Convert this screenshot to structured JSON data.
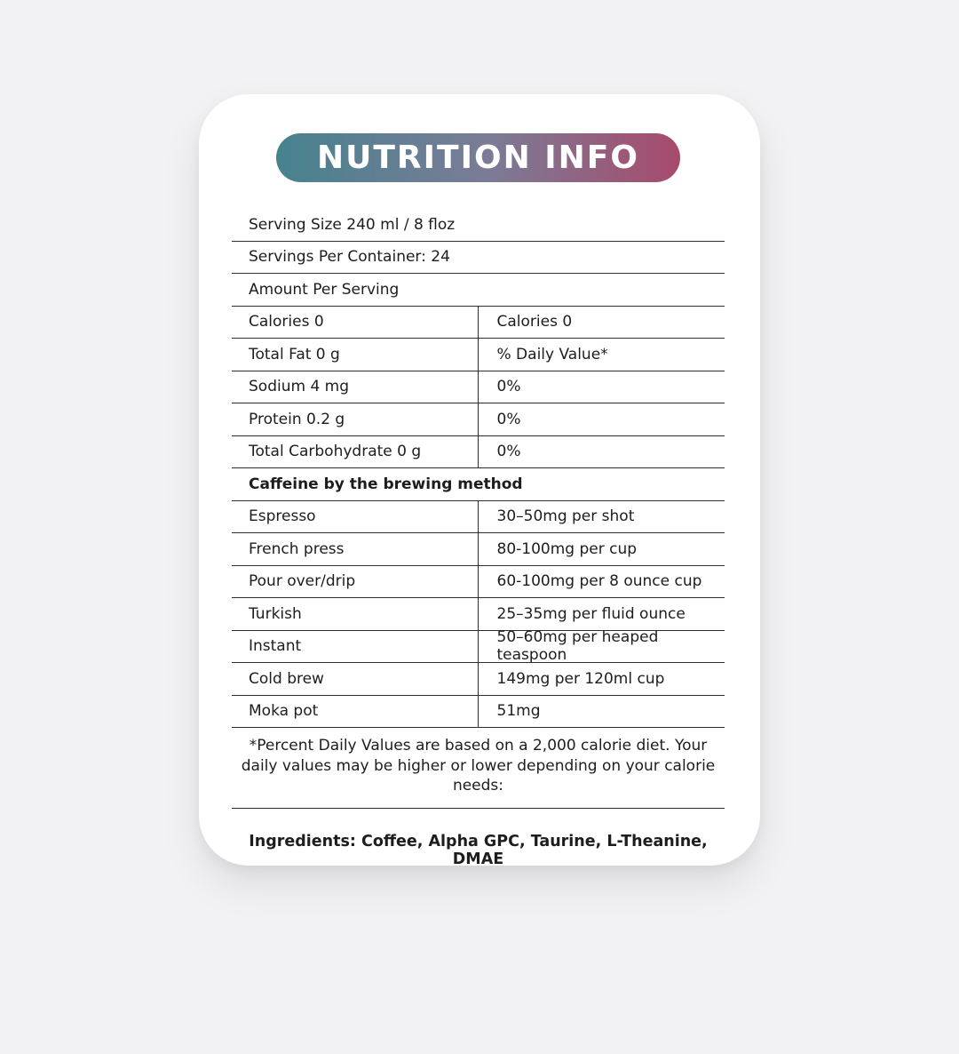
{
  "theme": {
    "page_background": "#f2f2f4",
    "card_background": "#ffffff",
    "rule_color": "#2e2e2e",
    "text_color": "#1d1d1d",
    "header_gradient_start": "#46828D",
    "header_gradient_mid": "#7A7C97",
    "header_gradient_end": "#A84A6C",
    "header_text_color": "#ffffff"
  },
  "header": {
    "title": "NUTRITION INFO"
  },
  "serving": {
    "size": "Serving Size 240 ml / 8 floz",
    "per_container": "Servings Per Container: 24",
    "amount_label": "Amount Per Serving"
  },
  "nutrition": {
    "rows": [
      {
        "left": "Calories 0",
        "right": "Calories 0"
      },
      {
        "left": "Total Fat 0 g",
        "right": "% Daily Value*"
      },
      {
        "left": "Sodium 4 mg",
        "right": "0%"
      },
      {
        "left": "Protein 0.2 g",
        "right": "0%"
      },
      {
        "left": "Total Carbohydrate 0 g",
        "right": "0%"
      }
    ]
  },
  "caffeine": {
    "heading": "Caffeine by the brewing method",
    "rows": [
      {
        "method": "Espresso",
        "amount": "30–50mg per shot"
      },
      {
        "method": "French press",
        "amount": "80-100mg per cup"
      },
      {
        "method": "Pour over/drip",
        "amount": "60-100mg per 8 ounce cup"
      },
      {
        "method": "Turkish",
        "amount": "25–35mg per fluid ounce"
      },
      {
        "method": "Instant",
        "amount": "50–60mg per heaped teaspoon"
      },
      {
        "method": "Cold brew",
        "amount": "149mg per 120ml cup"
      },
      {
        "method": "Moka pot",
        "amount": "51mg"
      }
    ]
  },
  "footnote": "*Percent Daily Values are based on a 2,000 calorie diet. Your daily values may be higher or lower depending on your calorie needs:",
  "ingredients": "Ingredients: Coffee, Alpha GPC, Taurine, L-Theanine, DMAE"
}
